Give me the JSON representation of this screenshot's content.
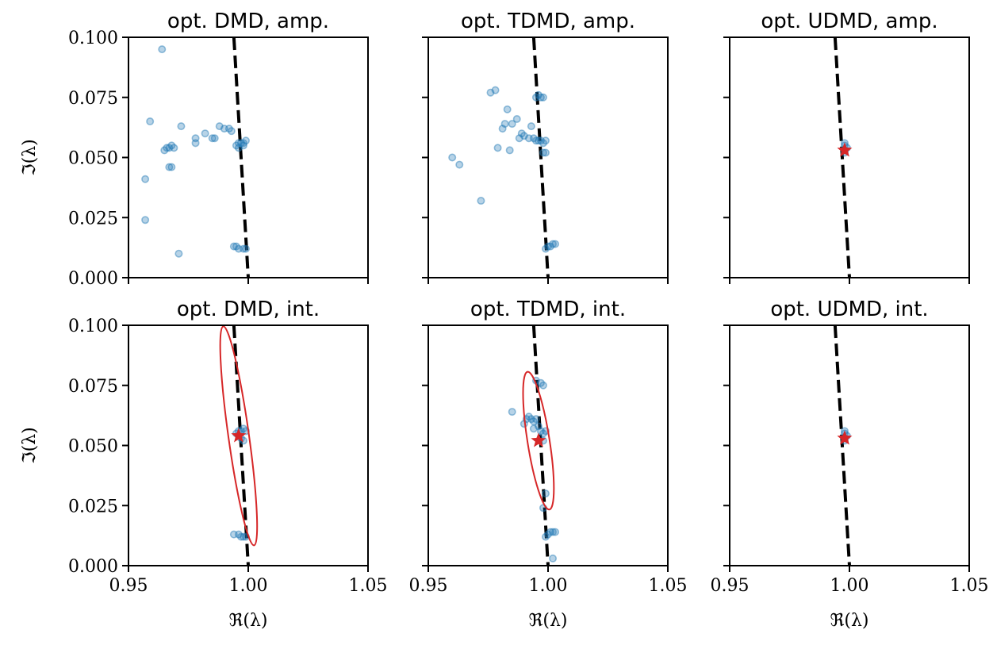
{
  "chart_data": {
    "type": "scatter",
    "layout": {
      "rows": 2,
      "cols": 3,
      "sharex": true,
      "sharey": true
    },
    "xlabel": "ℜ(λ)",
    "ylabel": "ℑ(λ)",
    "xlim": [
      0.95,
      1.05
    ],
    "ylim": [
      0.0,
      0.1
    ],
    "xticks": [
      "0.95",
      "1.00",
      "1.05"
    ],
    "yticks": [
      "0.000",
      "0.025",
      "0.050",
      "0.075",
      "0.100"
    ],
    "colors": {
      "points": "#1f77b4",
      "star": "#d62728",
      "ellipse": "#d62728",
      "reference": "#000000"
    },
    "reference_line": {
      "style": "dashed",
      "points": [
        [
          0.994,
          0.1
        ],
        [
          1.0,
          0.0
        ]
      ]
    },
    "panels": [
      {
        "title": "opt. DMD, amp.",
        "points": [
          [
            0.964,
            0.095
          ],
          [
            0.959,
            0.065
          ],
          [
            0.957,
            0.041
          ],
          [
            0.957,
            0.024
          ],
          [
            0.971,
            0.01
          ],
          [
            0.972,
            0.063
          ],
          [
            0.978,
            0.058
          ],
          [
            0.978,
            0.056
          ],
          [
            0.982,
            0.06
          ],
          [
            0.985,
            0.058
          ],
          [
            0.986,
            0.058
          ],
          [
            0.988,
            0.063
          ],
          [
            0.99,
            0.062
          ],
          [
            0.992,
            0.062
          ],
          [
            0.993,
            0.061
          ],
          [
            0.965,
            0.053
          ],
          [
            0.966,
            0.054
          ],
          [
            0.967,
            0.054
          ],
          [
            0.968,
            0.055
          ],
          [
            0.969,
            0.054
          ],
          [
            0.967,
            0.046
          ],
          [
            0.968,
            0.046
          ],
          [
            0.995,
            0.055
          ],
          [
            0.996,
            0.056
          ],
          [
            0.997,
            0.056
          ],
          [
            0.998,
            0.056
          ],
          [
            0.999,
            0.057
          ],
          [
            0.996,
            0.054
          ],
          [
            0.998,
            0.055
          ],
          [
            0.994,
            0.013
          ],
          [
            0.995,
            0.013
          ],
          [
            0.996,
            0.012
          ],
          [
            0.998,
            0.012
          ],
          [
            0.999,
            0.012
          ]
        ],
        "star": null,
        "ellipse": null
      },
      {
        "title": "opt. TDMD, amp.",
        "points": [
          [
            0.96,
            0.05
          ],
          [
            0.963,
            0.047
          ],
          [
            0.972,
            0.032
          ],
          [
            0.976,
            0.077
          ],
          [
            0.978,
            0.078
          ],
          [
            0.979,
            0.054
          ],
          [
            0.981,
            0.062
          ],
          [
            0.982,
            0.064
          ],
          [
            0.983,
            0.07
          ],
          [
            0.984,
            0.053
          ],
          [
            0.985,
            0.064
          ],
          [
            0.987,
            0.066
          ],
          [
            0.988,
            0.058
          ],
          [
            0.989,
            0.06
          ],
          [
            0.99,
            0.059
          ],
          [
            0.992,
            0.058
          ],
          [
            0.993,
            0.063
          ],
          [
            0.994,
            0.058
          ],
          [
            0.995,
            0.075
          ],
          [
            0.996,
            0.076
          ],
          [
            0.997,
            0.075
          ],
          [
            0.998,
            0.075
          ],
          [
            0.995,
            0.057
          ],
          [
            0.996,
            0.057
          ],
          [
            0.997,
            0.057
          ],
          [
            0.998,
            0.056
          ],
          [
            0.999,
            0.057
          ],
          [
            0.998,
            0.052
          ],
          [
            0.999,
            0.052
          ],
          [
            0.999,
            0.012
          ],
          [
            1.0,
            0.013
          ],
          [
            1.001,
            0.013
          ],
          [
            1.002,
            0.014
          ],
          [
            1.003,
            0.014
          ]
        ],
        "star": null,
        "ellipse": null
      },
      {
        "title": "opt. UDMD, amp.",
        "points": [
          [
            0.998,
            0.053
          ],
          [
            0.998,
            0.055
          ],
          [
            0.998,
            0.056
          ],
          [
            0.999,
            0.054
          ],
          [
            0.998,
            0.052
          ]
        ],
        "star": [
          0.998,
          0.053
        ],
        "ellipse": null
      },
      {
        "title": "opt. DMD, int.",
        "points": [
          [
            0.995,
            0.055
          ],
          [
            0.996,
            0.056
          ],
          [
            0.997,
            0.056
          ],
          [
            0.998,
            0.057
          ],
          [
            0.999,
            0.056
          ],
          [
            0.996,
            0.054
          ],
          [
            0.997,
            0.053
          ],
          [
            0.998,
            0.052
          ],
          [
            0.994,
            0.013
          ],
          [
            0.996,
            0.013
          ],
          [
            0.997,
            0.012
          ],
          [
            0.998,
            0.012
          ],
          [
            0.999,
            0.012
          ]
        ],
        "star": [
          0.996,
          0.054
        ],
        "ellipse": {
          "cx": 0.996,
          "cy": 0.054,
          "rx": 0.0043,
          "ry": 0.046,
          "tilt_deg": -8
        }
      },
      {
        "title": "opt. TDMD, int.",
        "points": [
          [
            0.985,
            0.064
          ],
          [
            0.99,
            0.059
          ],
          [
            0.991,
            0.061
          ],
          [
            0.992,
            0.062
          ],
          [
            0.993,
            0.061
          ],
          [
            0.994,
            0.06
          ],
          [
            0.995,
            0.061
          ],
          [
            0.994,
            0.057
          ],
          [
            0.996,
            0.058
          ],
          [
            0.997,
            0.056
          ],
          [
            0.998,
            0.055
          ],
          [
            0.999,
            0.056
          ],
          [
            0.998,
            0.052
          ],
          [
            0.995,
            0.077
          ],
          [
            0.997,
            0.076
          ],
          [
            0.998,
            0.075
          ],
          [
            0.999,
            0.03
          ],
          [
            0.998,
            0.024
          ],
          [
            0.999,
            0.012
          ],
          [
            1.0,
            0.013
          ],
          [
            1.001,
            0.014
          ],
          [
            1.002,
            0.014
          ],
          [
            1.003,
            0.014
          ],
          [
            1.002,
            0.003
          ]
        ],
        "star": [
          0.996,
          0.052
        ],
        "ellipse": {
          "cx": 0.996,
          "cy": 0.052,
          "rx": 0.0046,
          "ry": 0.029,
          "tilt_deg": -9
        }
      },
      {
        "title": "opt. UDMD, int.",
        "points": [
          [
            0.998,
            0.053
          ],
          [
            0.998,
            0.055
          ],
          [
            0.998,
            0.056
          ],
          [
            0.999,
            0.054
          ],
          [
            0.998,
            0.052
          ]
        ],
        "star": [
          0.998,
          0.053
        ],
        "ellipse": null
      }
    ]
  }
}
